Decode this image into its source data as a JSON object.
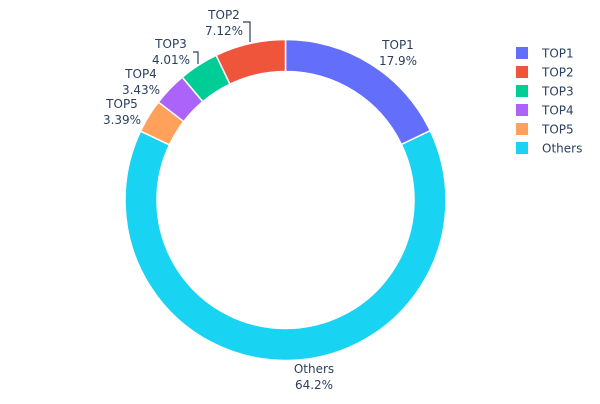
{
  "chart_data": {
    "type": "pie",
    "hole": true,
    "direction": "clockwise from top",
    "slices": [
      {
        "label": "TOP1",
        "value": 17.9,
        "text": "17.9%",
        "color": "#636efa"
      },
      {
        "label": "Others",
        "value": 64.2,
        "text": "64.2%",
        "color": "#19d3f3"
      },
      {
        "label": "TOP5",
        "value": 3.39,
        "text": "3.39%",
        "color": "#FFA15A"
      },
      {
        "label": "TOP4",
        "value": 3.43,
        "text": "3.43%",
        "color": "#ab63fa"
      },
      {
        "label": "TOP3",
        "value": 4.01,
        "text": "4.01%",
        "color": "#00cc96"
      },
      {
        "label": "TOP2",
        "value": 7.12,
        "text": "7.12%",
        "color": "#EF553B"
      }
    ],
    "legend": {
      "placement": "top-right",
      "entries": [
        {
          "label": "TOP1",
          "color": "#636efa"
        },
        {
          "label": "TOP2",
          "color": "#EF553B"
        },
        {
          "label": "TOP3",
          "color": "#00cc96"
        },
        {
          "label": "TOP4",
          "color": "#ab63fa"
        },
        {
          "label": "TOP5",
          "color": "#FFA15A"
        },
        {
          "label": "Others",
          "color": "#19d3f3"
        }
      ]
    }
  }
}
